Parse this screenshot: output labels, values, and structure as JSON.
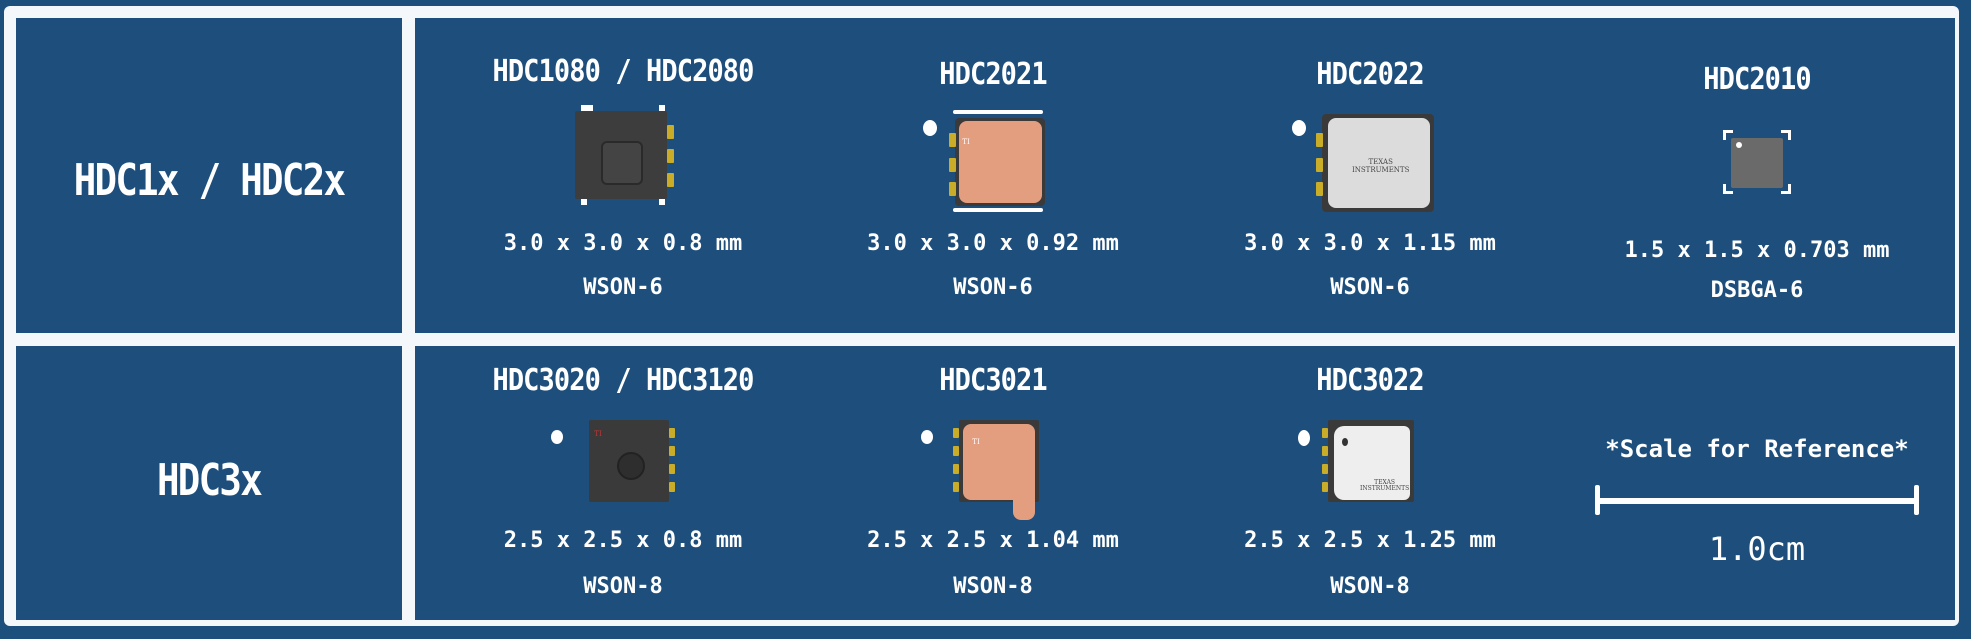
{
  "rows": [
    {
      "label": "HDC1x / HDC2x",
      "items": [
        {
          "title": "HDC1080 / HDC2080",
          "dims": "3.0 x 3.0 x 0.8 mm",
          "package": "WSON-6"
        },
        {
          "title": "HDC2021",
          "dims": "3.0 x 3.0 x 0.92 mm",
          "package": "WSON-6"
        },
        {
          "title": "HDC2022",
          "dims": "3.0 x 3.0 x 1.15 mm",
          "package": "WSON-6"
        },
        {
          "title": "HDC2010",
          "dims": "1.5 x 1.5 x 0.703 mm",
          "package": "DSBGA-6"
        }
      ]
    },
    {
      "label": "HDC3x",
      "items": [
        {
          "title": "HDC3020 / HDC3120",
          "dims": "2.5 x 2.5 x 0.8 mm",
          "package": "WSON-8"
        },
        {
          "title": "HDC3021",
          "dims": "2.5 x 2.5 x 1.04 mm",
          "package": "WSON-8"
        },
        {
          "title": "HDC3022",
          "dims": "2.5 x 2.5 x 1.25 mm",
          "package": "WSON-8"
        }
      ]
    }
  ],
  "scale": {
    "title": "*Scale for Reference*",
    "value": "1.0cm"
  },
  "logo_text": "TEXAS INSTRUMENTS",
  "colors": {
    "background": "#1e4f7c",
    "frame": "#f4f8fa",
    "pad": "#c9ad28",
    "copper_cover": "#e39e80",
    "white_cover": "#e8e8e8",
    "dark_body": "#3d3d3d"
  }
}
